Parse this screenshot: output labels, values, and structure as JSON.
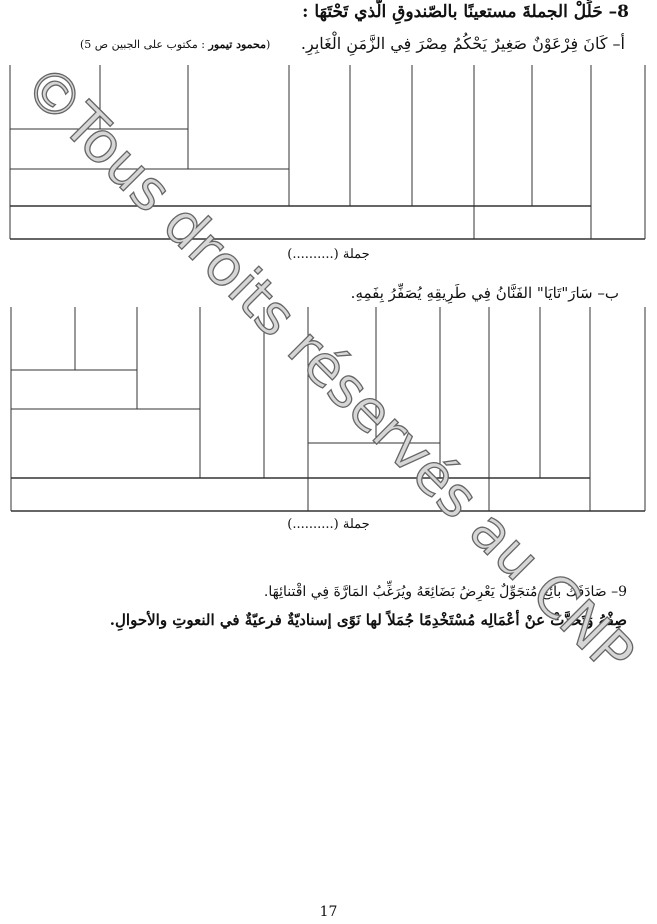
{
  "exercise8": {
    "title": "8– حَلِّلْ الجملةَ مستعينًا بالصّندوقِ الّذي تَحْتَهَا :",
    "sentence_a": "أ– كَانَ فِرْعَوْنٌ صَغِيرٌ يَحْكُمُ مِصْرَ فِي الزَّمَنِ الْغَابِرِ.",
    "citation_author": "محمود تيمور",
    "citation_rest": ": مكتوب على الجبين ص 5",
    "jomla_label_a": "جملة (..........)",
    "sentence_b": "ب– سَارَ\"تَايَا\" الفَنَّانُ فِي طَرِيقِهِ يُصَفِّرُ بِفَمِهِ.",
    "jomla_label_b": "جملة (..........)"
  },
  "exercise9": {
    "line1": "9– صَادَفَكَ بائِعٌ مُتجَوِّلٌ يَعْرِضُ بَضَائِعَهُ ويُرَغِّبُ المَارَّةَ فِي اقْتنائِهَا.",
    "line2": "صِفْهُ وَتَحَدَّثْ عنْ أعْمَالِه مُسْتَخْدِمًا جُمَلاً لها نَوًى إسناديّةٌ فرعيّةٌ في النعوتِ والأحوالِ."
  },
  "page_number": "17",
  "watermark": "©Tous droits réservés au CNP"
}
